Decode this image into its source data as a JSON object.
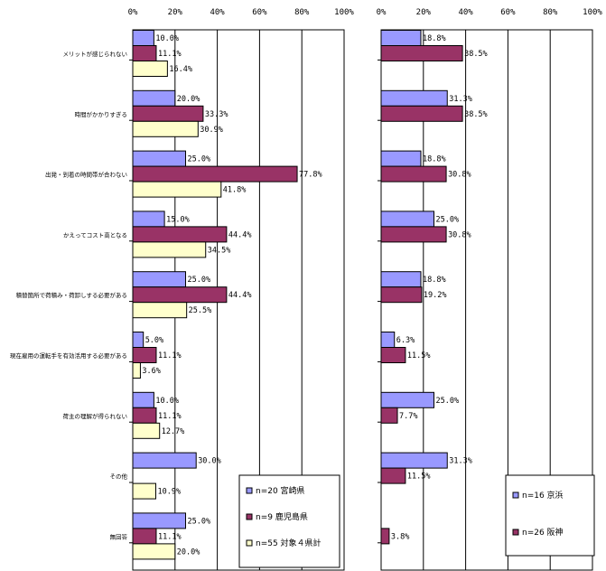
{
  "chart_data": [
    {
      "type": "bar",
      "orientation": "horizontal",
      "xlim": [
        0,
        100
      ],
      "x_ticks": [
        "0%",
        "20%",
        "40%",
        "60%",
        "80%",
        "100%"
      ],
      "categories": [
        "メリットが感じられない",
        "時間がかかりすぎる",
        "出発・到着の時間帯が合わない",
        "かえってコスト高となる",
        "積替箇所で荷積み・荷卸しする必要がある",
        "現在雇用の運転手を有効活用する必要がある",
        "荷主の理解が得られない",
        "その他",
        "無回答"
      ],
      "series": [
        {
          "name": "n=20 宮崎県",
          "color": "#9999ff",
          "values": [
            10.0,
            20.0,
            25.0,
            15.0,
            25.0,
            5.0,
            10.0,
            30.0,
            25.0
          ],
          "labels": [
            "10.0%",
            "20.0%",
            "25.0%",
            "15.0%",
            "25.0%",
            "5.0%",
            "10.0%",
            "30.0%",
            "25.0%"
          ]
        },
        {
          "name": "n=9 鹿児島県",
          "color": "#993366",
          "values": [
            11.1,
            33.3,
            77.8,
            44.4,
            44.4,
            11.1,
            11.1,
            null,
            11.1
          ],
          "labels": [
            "11.1%",
            "33.3%",
            "77.8%",
            "44.4%",
            "44.4%",
            "11.1%",
            "11.1%",
            "",
            "11.1%"
          ]
        },
        {
          "name": "n=55 対象４県計",
          "color": "#ffffcc",
          "values": [
            16.4,
            30.9,
            41.8,
            34.5,
            25.5,
            3.6,
            12.7,
            10.9,
            20.0
          ],
          "labels": [
            "16.4%",
            "30.9%",
            "41.8%",
            "34.5%",
            "25.5%",
            "3.6%",
            "12.7%",
            "10.9%",
            "20.0%"
          ]
        }
      ]
    },
    {
      "type": "bar",
      "orientation": "horizontal",
      "xlim": [
        0,
        100
      ],
      "x_ticks": [
        "0%",
        "20%",
        "40%",
        "60%",
        "80%",
        "100%"
      ],
      "series": [
        {
          "name": "n=16 京浜",
          "color": "#9999ff",
          "values": [
            18.8,
            31.3,
            18.8,
            25.0,
            18.8,
            6.3,
            25.0,
            31.3,
            null
          ],
          "labels": [
            "18.8%",
            "31.3%",
            "18.8%",
            "25.0%",
            "18.8%",
            "6.3%",
            "25.0%",
            "31.3%",
            ""
          ]
        },
        {
          "name": "n=26 阪神",
          "color": "#993366",
          "values": [
            38.5,
            38.5,
            30.8,
            30.8,
            19.2,
            11.5,
            7.7,
            11.5,
            3.8
          ],
          "labels": [
            "38.5%",
            "38.5%",
            "30.8%",
            "30.8%",
            "19.2%",
            "11.5%",
            "7.7%",
            "11.5%",
            "3.8%"
          ]
        }
      ]
    }
  ]
}
